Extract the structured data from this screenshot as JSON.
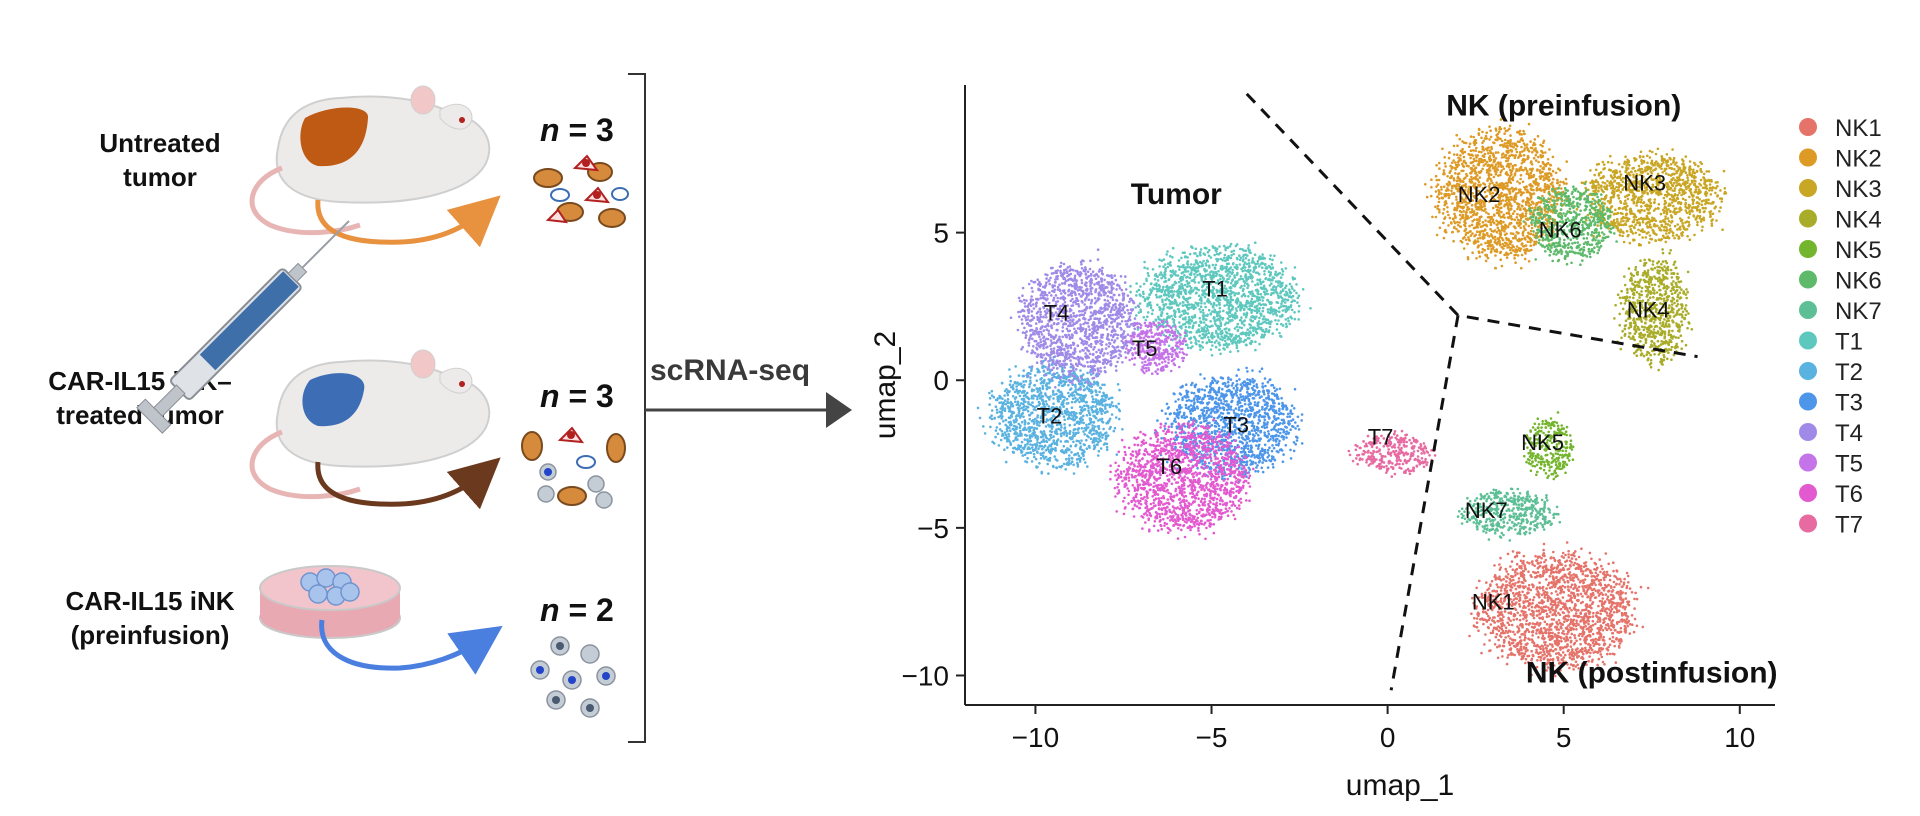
{
  "panel_letter": "",
  "conditions": [
    {
      "label_line1": "Untreated",
      "label_line2": "tumor",
      "n_prefix": "n",
      "n_suffix": " = 3",
      "arrow_color": "#e8913e"
    },
    {
      "label_line1": "CAR-IL15 iNK–",
      "label_line2": "treated tumor",
      "n_prefix": "n",
      "n_suffix": " = 3",
      "arrow_color": "#6b3a1e"
    },
    {
      "label_line1": "CAR-IL15 iNK",
      "label_line2": "(preinfusion)",
      "n_prefix": "n",
      "n_suffix": " = 2",
      "arrow_color": "#4a7fe0"
    }
  ],
  "method_label": "scRNA-seq",
  "icons": [
    "mouse-icon",
    "syringe-icon",
    "petri-dish-icon",
    "cell-cluster-icon"
  ],
  "chart_data": {
    "type": "scatter",
    "xlabel": "umap_1",
    "ylabel": "umap_2",
    "xlim": [
      -12,
      11
    ],
    "ylim": [
      -11,
      10
    ],
    "xticks": [
      -10,
      -5,
      0,
      5,
      10
    ],
    "xtick_labels": [
      "−10",
      "−5",
      "0",
      "5",
      "10"
    ],
    "yticks": [
      5,
      0,
      -5,
      -10
    ],
    "ytick_labels": [
      "5",
      "0",
      "−5",
      "−10"
    ],
    "region_labels": [
      {
        "text": "NK (preinfusion)",
        "x": 5.0,
        "y": 9.3
      },
      {
        "text": "Tumor",
        "x": -6.0,
        "y": 6.3
      },
      {
        "text": "NK (postinfusion)",
        "x": 7.5,
        "y": -9.9
      }
    ],
    "legend_position": "right",
    "grid": false,
    "clusters": [
      {
        "name": "NK1",
        "color": "#e5736a",
        "cx": 4.8,
        "cy": -7.8,
        "rx": 2.3,
        "ry": 2.0,
        "label_x": 3.0,
        "label_y": -7.5
      },
      {
        "name": "NK2",
        "color": "#dd9a25",
        "cx": 3.2,
        "cy": 6.3,
        "rx": 1.8,
        "ry": 2.3,
        "label_x": 2.6,
        "label_y": 6.3
      },
      {
        "name": "NK3",
        "color": "#c9a623",
        "cx": 7.5,
        "cy": 6.2,
        "rx": 2.0,
        "ry": 1.5,
        "label_x": 7.3,
        "label_y": 6.7
      },
      {
        "name": "NK4",
        "color": "#a9ac28",
        "cx": 7.6,
        "cy": 2.4,
        "rx": 1.0,
        "ry": 1.8,
        "label_x": 7.4,
        "label_y": 2.4
      },
      {
        "name": "NK5",
        "color": "#74b52e",
        "cx": 4.6,
        "cy": -2.3,
        "rx": 0.7,
        "ry": 1.0,
        "label_x": 4.4,
        "label_y": -2.1
      },
      {
        "name": "NK6",
        "color": "#5cba6a",
        "cx": 5.2,
        "cy": 5.3,
        "rx": 1.2,
        "ry": 1.3,
        "label_x": 4.9,
        "label_y": 5.1
      },
      {
        "name": "NK7",
        "color": "#5cbf95",
        "cx": 3.4,
        "cy": -4.5,
        "rx": 1.4,
        "ry": 0.8,
        "label_x": 2.8,
        "label_y": -4.4
      },
      {
        "name": "T1",
        "color": "#5ec8be",
        "cx": -4.8,
        "cy": 2.8,
        "rx": 2.3,
        "ry": 1.8,
        "label_x": -4.9,
        "label_y": 3.1
      },
      {
        "name": "T2",
        "color": "#5ab2e0",
        "cx": -9.5,
        "cy": -1.2,
        "rx": 1.8,
        "ry": 1.8,
        "label_x": -9.6,
        "label_y": -1.2
      },
      {
        "name": "T3",
        "color": "#4d96ea",
        "cx": -4.4,
        "cy": -1.5,
        "rx": 1.9,
        "ry": 1.7,
        "label_x": -4.3,
        "label_y": -1.5
      },
      {
        "name": "T4",
        "color": "#9f8ae8",
        "cx": -8.8,
        "cy": 2.0,
        "rx": 1.7,
        "ry": 2.0,
        "label_x": -9.4,
        "label_y": 2.3
      },
      {
        "name": "T5",
        "color": "#c473e8",
        "cx": -6.6,
        "cy": 1.1,
        "rx": 0.9,
        "ry": 0.9,
        "label_x": -6.9,
        "label_y": 1.1
      },
      {
        "name": "T6",
        "color": "#e35ad0",
        "cx": -5.8,
        "cy": -3.3,
        "rx": 1.9,
        "ry": 1.9,
        "label_x": -6.2,
        "label_y": -2.9
      },
      {
        "name": "T7",
        "color": "#e76aa0",
        "cx": 0.2,
        "cy": -2.5,
        "rx": 1.1,
        "ry": 0.7,
        "label_x": -0.2,
        "label_y": -1.9
      }
    ],
    "dashed_boundaries": [
      {
        "points": [
          [
            -4,
            9.7
          ],
          [
            2.0,
            2.2
          ],
          [
            8.8,
            0.8
          ]
        ]
      },
      {
        "points": [
          [
            2.0,
            2.2
          ],
          [
            0.1,
            -10.5
          ]
        ]
      }
    ]
  }
}
